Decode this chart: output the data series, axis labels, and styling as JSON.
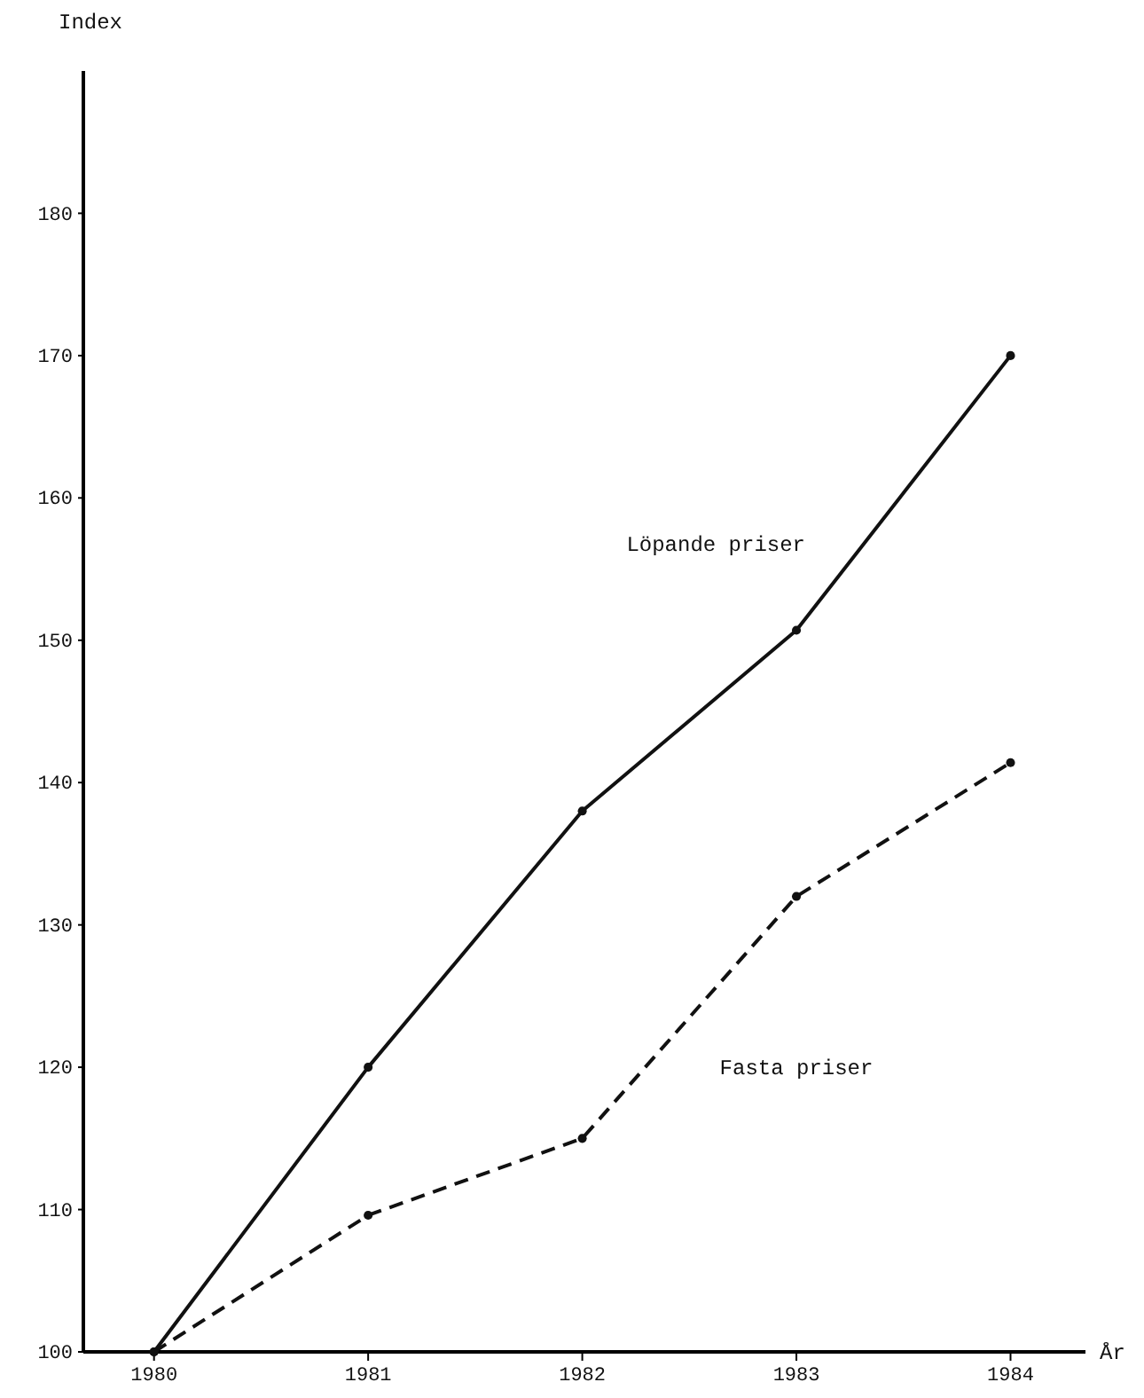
{
  "chart_data": {
    "type": "line",
    "xlabel": "År",
    "ylabel": "Index",
    "x": [
      1980,
      1981,
      1982,
      1983,
      1984
    ],
    "xlim": [
      1979.67,
      1984.35
    ],
    "xticks": [
      1980,
      1981,
      1982,
      1983,
      1984
    ],
    "ylim": [
      100,
      190
    ],
    "yticks": [
      100,
      110,
      120,
      130,
      140,
      150,
      160,
      170,
      180
    ],
    "series": [
      {
        "name": "Löpande priser",
        "color": "#111111",
        "values": [
          100,
          120,
          138,
          150.7,
          170
        ],
        "line_style": "solid"
      },
      {
        "name": "Fasta priser",
        "color": "#111111",
        "values": [
          100,
          109.6,
          115,
          132,
          141.4
        ],
        "line_style": "dashed"
      }
    ],
    "marker": "circle",
    "grid": false
  }
}
